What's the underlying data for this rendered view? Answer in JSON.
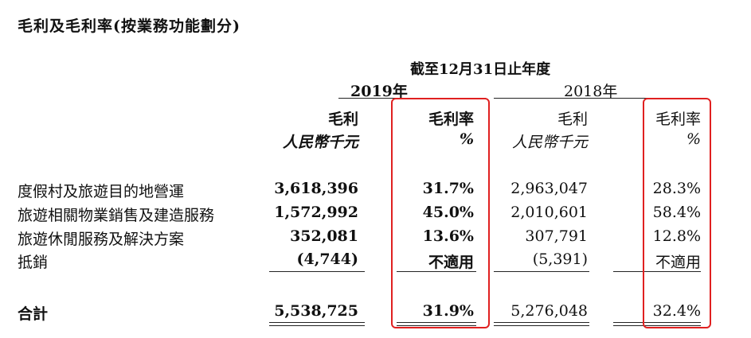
{
  "title": "毛利及毛利率(按業務功能劃分)",
  "period": "截至12月31日止年度",
  "years": {
    "y2019": "2019年",
    "y2018": "2018年"
  },
  "headers": {
    "gross_profit": "毛利",
    "gross_margin": "毛利率",
    "unit_rmb": "人民幣千元",
    "unit_pct": "%"
  },
  "rows": [
    {
      "label": "度假村及旅遊目的地營運",
      "gp2019": "3,618,396",
      "gm2019": "31.7%",
      "gp2018": "2,963,047",
      "gm2018": "28.3%"
    },
    {
      "label": "旅遊相關物業銷售及建造服務",
      "gp2019": "1,572,992",
      "gm2019": "45.0%",
      "gp2018": "2,010,601",
      "gm2018": "58.4%"
    },
    {
      "label": "旅遊休閒服務及解決方案",
      "gp2019": "352,081",
      "gm2019": "13.6%",
      "gp2018": "307,791",
      "gm2018": "12.8%"
    },
    {
      "label": "抵銷",
      "gp2019": "(4,744)",
      "gm2019": "不適用",
      "gp2018": "(5,391)",
      "gm2018": "不適用"
    }
  ],
  "total": {
    "label": "合計",
    "gp2019": "5,538,725",
    "gm2019": "31.9%",
    "gp2018": "5,276,048",
    "gm2018": "32.4%"
  },
  "highlight_color": "#e02020"
}
